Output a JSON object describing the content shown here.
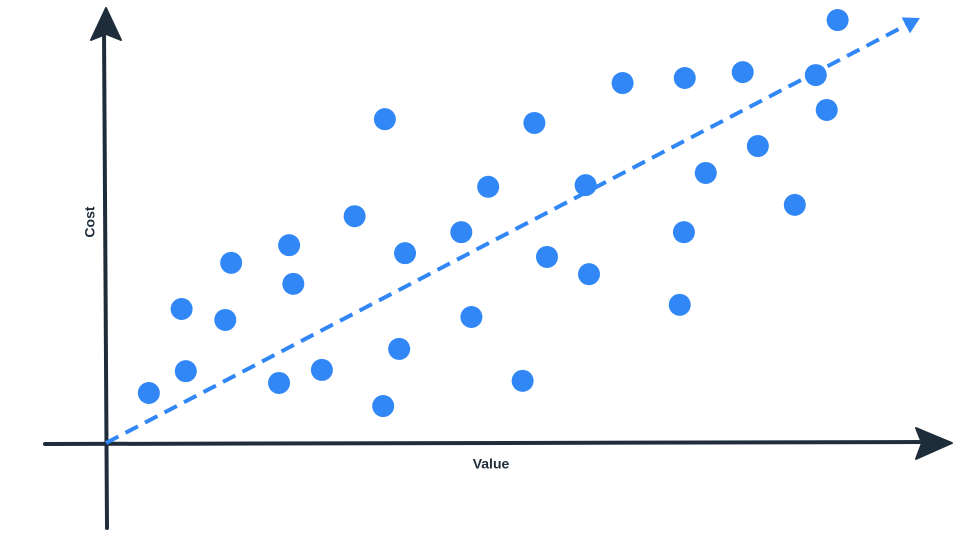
{
  "chart_data": {
    "type": "scatter",
    "x_label": "Value",
    "y_label": "Cost",
    "xlim": [
      0,
      100
    ],
    "ylim": [
      0,
      100
    ],
    "color": "#3187f5",
    "x": [
      5.1,
      9.5,
      9.0,
      14.2,
      14.9,
      20.6,
      21.8,
      22.3,
      25.7,
      29.6,
      33.0,
      33.2,
      34.9,
      35.6,
      42.3,
      43.5,
      45.5,
      49.6,
      51.0,
      52.5,
      57.1,
      57.5,
      61.5,
      68.3,
      68.8,
      68.9,
      71.4,
      75.8,
      77.6,
      82.0,
      84.5,
      85.8,
      87.1
    ],
    "values": [
      11.9,
      17.1,
      31.9,
      29.3,
      42.9,
      14.3,
      47.1,
      37.9,
      17.4,
      54.0,
      8.8,
      77.1,
      22.4,
      45.2,
      50.2,
      30.0,
      61.0,
      14.8,
      76.2,
      44.3,
      61.4,
      40.2,
      85.7,
      32.9,
      50.2,
      86.9,
      64.3,
      88.3,
      70.7,
      56.7,
      87.6,
      79.3,
      100.7
    ],
    "trend_line": {
      "x": [
        0,
        96.9
      ],
      "values": [
        0,
        101.2
      ],
      "color": "#3187f5"
    }
  }
}
